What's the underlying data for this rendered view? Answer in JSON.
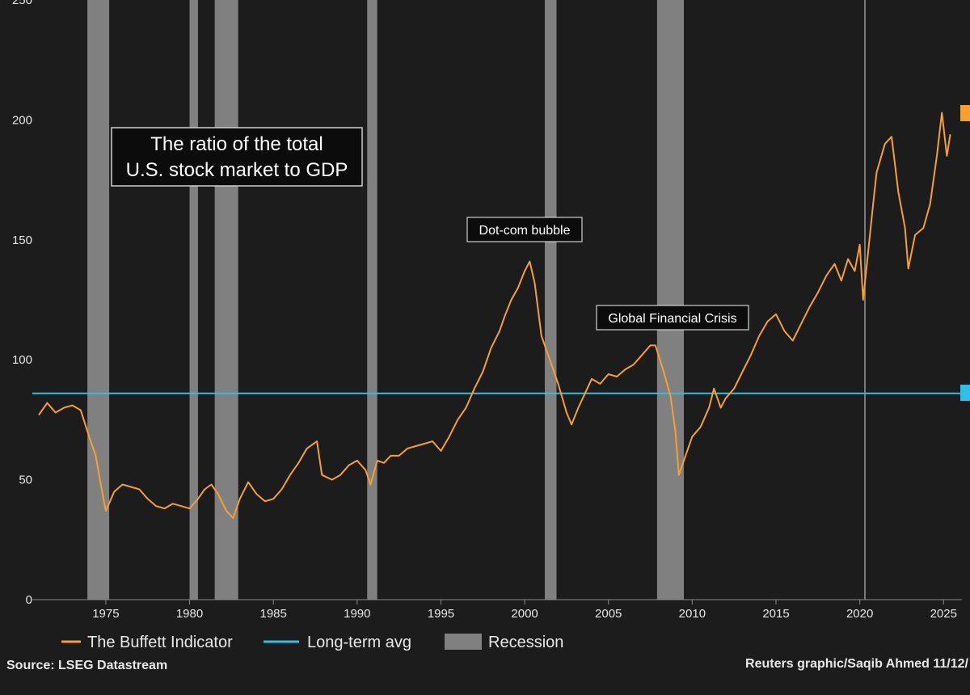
{
  "chart_data": {
    "type": "line",
    "title": "The ratio of the total U.S. stock market to GDP",
    "title_lines": [
      "The ratio of the total",
      "U.S. stock market to GDP"
    ],
    "ylim": [
      0,
      250
    ],
    "xlim": [
      1971,
      2026
    ],
    "y_ticks": [
      0,
      50,
      100,
      150,
      200,
      250
    ],
    "y_tick_labels": [
      "0",
      "50",
      "100",
      "150",
      "200",
      "250"
    ],
    "x_ticks": [
      1975,
      1980,
      1985,
      1990,
      1995,
      2000,
      2005,
      2010,
      2015,
      2020,
      2025
    ],
    "x_tick_labels": [
      "1975",
      "1980",
      "1985",
      "1990",
      "1995",
      "2000",
      "2005",
      "2010",
      "2015",
      "2020",
      "2025"
    ],
    "grid": false,
    "legend_position": "bottom-left",
    "series": [
      {
        "name": "The Buffett Indicator",
        "color": "#f5a030",
        "x": [
          1971.0,
          1971.5,
          1972.0,
          1972.5,
          1973.0,
          1973.5,
          1974.0,
          1974.4,
          1974.7,
          1975.0,
          1975.5,
          1976.0,
          1976.5,
          1977.0,
          1977.5,
          1978.0,
          1978.5,
          1979.0,
          1979.5,
          1980.0,
          1980.5,
          1980.9,
          1981.3,
          1981.7,
          1982.2,
          1982.6,
          1983.0,
          1983.5,
          1984.0,
          1984.5,
          1985.0,
          1985.5,
          1986.0,
          1986.5,
          1987.0,
          1987.6,
          1987.9,
          1988.5,
          1989.0,
          1989.5,
          1990.0,
          1990.5,
          1990.8,
          1991.2,
          1991.6,
          1992.0,
          1992.5,
          1993.0,
          1993.5,
          1994.0,
          1994.5,
          1995.0,
          1995.5,
          1996.0,
          1996.5,
          1997.0,
          1997.5,
          1998.0,
          1998.5,
          1998.8,
          1999.2,
          1999.6,
          2000.0,
          2000.3,
          2000.6,
          2001.0,
          2001.5,
          2002.0,
          2002.5,
          2002.8,
          2003.2,
          2003.6,
          2004.0,
          2004.5,
          2005.0,
          2005.5,
          2006.0,
          2006.5,
          2007.0,
          2007.5,
          2007.8,
          2008.3,
          2008.7,
          2009.0,
          2009.2,
          2009.6,
          2010.0,
          2010.5,
          2011.0,
          2011.3,
          2011.7,
          2012.0,
          2012.5,
          2013.0,
          2013.5,
          2014.0,
          2014.5,
          2015.0,
          2015.5,
          2016.0,
          2016.5,
          2017.0,
          2017.5,
          2018.0,
          2018.5,
          2018.9,
          2019.3,
          2019.7,
          2020.0,
          2020.2,
          2020.5,
          2020.8,
          2021.0,
          2021.5,
          2021.9,
          2022.3,
          2022.7,
          2022.9,
          2023.3,
          2023.8,
          2024.2,
          2024.6,
          2024.9,
          2025.2,
          2025.4
        ],
        "values": [
          77,
          82,
          78,
          80,
          81,
          79,
          68,
          60,
          48,
          37,
          45,
          48,
          47,
          46,
          42,
          39,
          38,
          40,
          39,
          38,
          42,
          46,
          48,
          44,
          37,
          34,
          42,
          49,
          44,
          41,
          42,
          46,
          52,
          57,
          63,
          66,
          52,
          50,
          52,
          56,
          58,
          54,
          48,
          58,
          57,
          60,
          60,
          63,
          64,
          65,
          66,
          62,
          68,
          75,
          80,
          88,
          95,
          105,
          112,
          118,
          125,
          130,
          137,
          141,
          132,
          110,
          100,
          90,
          78,
          73,
          80,
          86,
          92,
          90,
          94,
          93,
          96,
          98,
          102,
          106,
          106,
          95,
          85,
          70,
          52,
          60,
          68,
          72,
          80,
          88,
          80,
          84,
          88,
          95,
          102,
          110,
          116,
          119,
          112,
          108,
          115,
          122,
          128,
          135,
          140,
          133,
          142,
          137,
          148,
          125,
          145,
          165,
          178,
          190,
          193,
          170,
          155,
          138,
          152,
          155,
          165,
          185,
          203,
          185,
          194
        ]
      },
      {
        "name": "Long-term avg",
        "color": "#2ec0e8",
        "value": 86
      }
    ],
    "recessions": {
      "name": "Recession",
      "color": "#808080",
      "periods": [
        [
          1973.9,
          1975.2
        ],
        [
          1980.0,
          1980.5
        ],
        [
          1981.5,
          1982.9
        ],
        [
          1990.6,
          1991.2
        ],
        [
          2001.2,
          2001.9
        ],
        [
          2007.9,
          2009.5
        ]
      ]
    },
    "annotations": [
      "Dot-com bubble",
      "Global Financial Crisis"
    ],
    "source": "Source: LSEG Datastream",
    "credit": "Reuters graphic/Saqib Ahmed 11/12/"
  }
}
